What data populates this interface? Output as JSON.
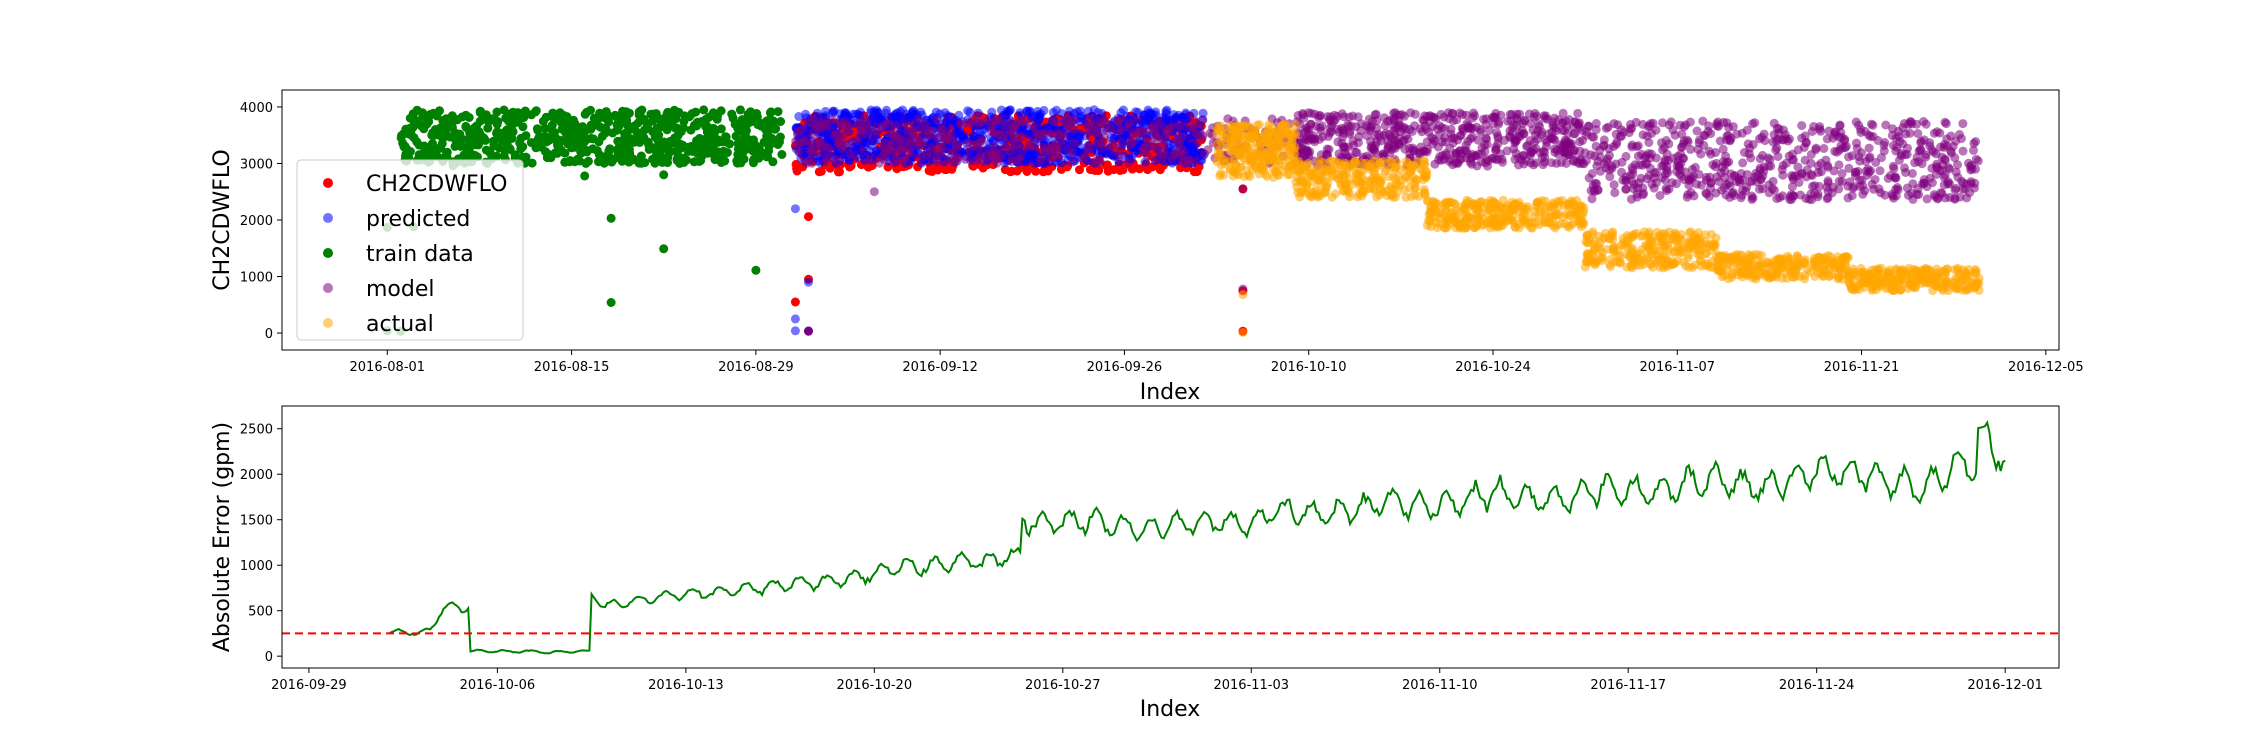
{
  "chart_data": [
    {
      "type": "scatter",
      "xlabel": "Index",
      "ylabel": "CH2CDWFLO",
      "xlim": [
        "2016-07-24",
        "2016-12-06"
      ],
      "ylim": [
        -300,
        4300
      ],
      "x_ticks": [
        "2016-08-01",
        "2016-08-15",
        "2016-08-29",
        "2016-09-12",
        "2016-09-26",
        "2016-10-10",
        "2016-10-24",
        "2016-11-07",
        "2016-11-21",
        "2016-12-05"
      ],
      "y_ticks": [
        0,
        1000,
        2000,
        3000,
        4000
      ],
      "grid": false,
      "legend_placement": "center-left",
      "series": [
        {
          "name": "train data",
          "color": "#008000",
          "opacity": 1.0,
          "band": {
            "start": "2016-08-02",
            "end": "2016-08-31",
            "low": 3000,
            "high": 3950,
            "n": 700
          },
          "points": [
            [
              "2016-08-01",
              1870
            ],
            [
              "2016-08-01",
              40
            ],
            [
              "2016-08-02",
              30
            ],
            [
              "2016-08-03",
              1880
            ],
            [
              "2016-08-06",
              2960
            ],
            [
              "2016-08-16",
              2780
            ],
            [
              "2016-08-18",
              540
            ],
            [
              "2016-08-18",
              2030
            ],
            [
              "2016-08-22",
              2800
            ],
            [
              "2016-08-22",
              1490
            ],
            [
              "2016-08-29",
              1110
            ],
            [
              "2016-08-30",
              3300
            ]
          ]
        },
        {
          "name": "CH2CDWFLO",
          "color": "#ff0000",
          "opacity": 1.0,
          "band": {
            "start": "2016-09-01",
            "end": "2016-10-02",
            "low": 2850,
            "high": 3850,
            "n": 600
          },
          "points": [
            [
              "2016-09-01",
              550
            ],
            [
              "2016-09-02",
              2060
            ],
            [
              "2016-09-02",
              950
            ],
            [
              "2016-09-02",
              30
            ],
            [
              "2016-10-05",
              2550
            ],
            [
              "2016-10-05",
              30
            ],
            [
              "2016-10-05",
              750
            ]
          ]
        },
        {
          "name": "predicted",
          "color": "#0000ff",
          "opacity": 0.55,
          "band": {
            "start": "2016-09-01",
            "end": "2016-10-02",
            "low": 3000,
            "high": 3950,
            "n": 800
          },
          "points": [
            [
              "2016-09-01",
              2200
            ],
            [
              "2016-09-01",
              250
            ],
            [
              "2016-09-01",
              40
            ],
            [
              "2016-09-02",
              900
            ],
            [
              "2016-09-02",
              40
            ]
          ]
        },
        {
          "name": "model",
          "color": "#800080",
          "opacity": 0.55,
          "bands": [
            {
              "start": "2016-09-01",
              "end": "2016-10-09",
              "low": 3000,
              "high": 3800,
              "n": 350
            },
            {
              "start": "2016-10-09",
              "end": "2016-10-31",
              "low": 2950,
              "high": 3900,
              "n": 550
            },
            {
              "start": "2016-10-31",
              "end": "2016-11-30",
              "low": 2350,
              "high": 3750,
              "n": 650
            }
          ],
          "points": [
            [
              "2016-09-07",
              2500
            ],
            [
              "2016-10-05",
              2550
            ],
            [
              "2016-10-05",
              780
            ]
          ]
        },
        {
          "name": "actual",
          "color": "#ffa500",
          "opacity": 0.55,
          "bands": [
            {
              "start": "2016-10-03",
              "end": "2016-10-09",
              "low": 2750,
              "high": 3700,
              "n": 250
            },
            {
              "start": "2016-10-09",
              "end": "2016-10-19",
              "low": 2400,
              "high": 3050,
              "n": 250
            },
            {
              "start": "2016-10-19",
              "end": "2016-10-31",
              "low": 1850,
              "high": 2350,
              "n": 300
            },
            {
              "start": "2016-10-31",
              "end": "2016-11-10",
              "low": 1150,
              "high": 1800,
              "n": 250
            },
            {
              "start": "2016-11-10",
              "end": "2016-11-20",
              "low": 950,
              "high": 1400,
              "n": 250
            },
            {
              "start": "2016-11-20",
              "end": "2016-11-30",
              "low": 750,
              "high": 1150,
              "n": 250
            }
          ],
          "points": [
            [
              "2016-10-05",
              680
            ],
            [
              "2016-10-05",
              10
            ]
          ]
        }
      ],
      "legend": [
        "CH2CDWFLO",
        "predicted",
        "train data",
        "model",
        "actual"
      ]
    },
    {
      "type": "line",
      "xlabel": "Index",
      "ylabel": "Absolute Error (gpm)",
      "xlim": [
        "2016-09-28",
        "2016-12-03"
      ],
      "ylim": [
        -130,
        2750
      ],
      "x_ticks": [
        "2016-09-29",
        "2016-10-06",
        "2016-10-13",
        "2016-10-20",
        "2016-10-27",
        "2016-11-03",
        "2016-11-10",
        "2016-11-17",
        "2016-11-24",
        "2016-12-01"
      ],
      "y_ticks": [
        0,
        500,
        1000,
        1500,
        2000,
        2500
      ],
      "grid": false,
      "threshold": {
        "value": 250,
        "color": "#ff0000",
        "style": "dashed"
      },
      "series": [
        {
          "color": "#008000",
          "x": [
            "2016-10-02",
            "2016-10-02T12:00",
            "2016-10-03",
            "2016-10-03T12:00",
            "2016-10-04",
            "2016-10-04T06:00",
            "2016-10-04T12:00",
            "2016-10-05",
            "2016-10-05T12:00",
            "2016-10-06",
            "2016-10-07",
            "2016-10-08",
            "2016-10-09",
            "2016-10-09T12:00",
            "2016-10-10",
            "2016-10-11",
            "2016-10-12",
            "2016-10-13",
            "2016-10-14",
            "2016-10-15",
            "2016-10-16",
            "2016-10-17",
            "2016-10-18",
            "2016-10-19",
            "2016-10-20",
            "2016-10-21",
            "2016-10-22",
            "2016-10-23",
            "2016-10-24",
            "2016-10-25",
            "2016-10-25T12:00",
            "2016-10-26",
            "2016-10-28",
            "2016-10-30",
            "2016-11-01",
            "2016-11-03",
            "2016-11-04",
            "2016-11-06",
            "2016-11-08",
            "2016-11-10",
            "2016-11-12",
            "2016-11-14",
            "2016-11-16",
            "2016-11-18",
            "2016-11-20",
            "2016-11-22",
            "2016-11-24",
            "2016-11-26",
            "2016-11-28",
            "2016-11-29",
            "2016-11-30",
            "2016-12-01"
          ],
          "y": [
            260,
            280,
            240,
            300,
            520,
            550,
            540,
            50,
            60,
            50,
            55,
            40,
            55,
            680,
            550,
            600,
            650,
            700,
            690,
            730,
            760,
            800,
            820,
            850,
            900,
            1000,
            980,
            1050,
            1020,
            1100,
            1550,
            1450,
            1500,
            1400,
            1480,
            1450,
            1620,
            1550,
            1700,
            1650,
            1800,
            1700,
            1850,
            1800,
            1950,
            1850,
            2050,
            2000,
            1800,
            2100,
            2450,
            2150
          ]
        }
      ]
    }
  ]
}
